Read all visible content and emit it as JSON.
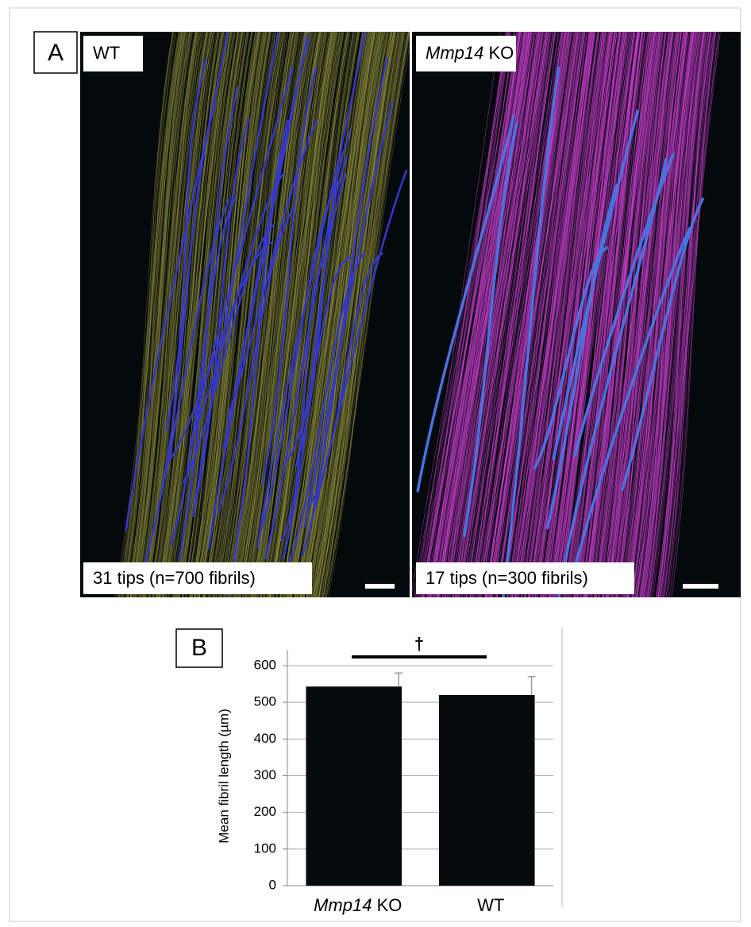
{
  "panels": [
    {
      "letter": "A",
      "images": [
        {
          "label": "WT",
          "caption": "31 tips (n=700 fibrils)"
        },
        {
          "label": "Mmp14 KO",
          "caption": "17 tips (n=300 fibrils)"
        }
      ]
    }
  ],
  "chart_data": {
    "type": "bar",
    "letter": "B",
    "ylabel": "Mean fibril length (µm)",
    "categories": [
      "Mmp14 KO",
      "WT"
    ],
    "values": [
      543,
      520
    ],
    "errors": [
      37,
      50
    ],
    "color": "#050a0d",
    "ylim": [
      0,
      600
    ],
    "yticks": [
      0,
      100,
      200,
      300,
      400,
      500,
      600
    ],
    "grid": true,
    "annotation": "†"
  }
}
